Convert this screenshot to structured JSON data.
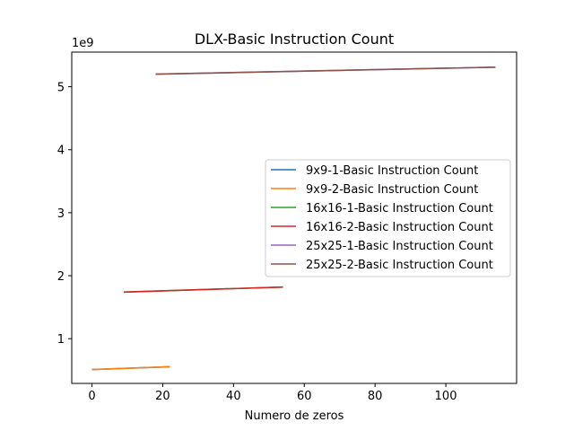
{
  "chart_data": {
    "type": "line",
    "title": "DLX-Basic Instruction Count",
    "xlabel": "Numero de zeros",
    "ylabel": "",
    "y_offset_label": "1e9",
    "xlim": [
      -5.7,
      120
    ],
    "ylim": [
      0.29,
      5.55
    ],
    "xticks": [
      0,
      20,
      40,
      60,
      80,
      100
    ],
    "yticks": [
      1,
      2,
      3,
      4,
      5
    ],
    "grid": false,
    "legend_position": "center-right",
    "series": [
      {
        "name": "9x9-1-Basic Instruction Count",
        "color": "#1f77b4",
        "x": [
          0,
          22
        ],
        "y": [
          0.51,
          0.555
        ]
      },
      {
        "name": "9x9-2-Basic Instruction Count",
        "color": "#ff7f0e",
        "x": [
          0,
          22
        ],
        "y": [
          0.51,
          0.555
        ]
      },
      {
        "name": "16x16-1-Basic Instruction Count",
        "color": "#2ca02c",
        "x": [
          9,
          54
        ],
        "y": [
          1.74,
          1.82
        ]
      },
      {
        "name": "16x16-2-Basic Instruction Count",
        "color": "#d62728",
        "x": [
          9,
          54
        ],
        "y": [
          1.74,
          1.82
        ]
      },
      {
        "name": "25x25-1-Basic Instruction Count",
        "color": "#9467bd",
        "x": [
          18,
          114
        ],
        "y": [
          5.2,
          5.31
        ]
      },
      {
        "name": "25x25-2-Basic Instruction Count",
        "color": "#8c564b",
        "x": [
          18,
          114
        ],
        "y": [
          5.2,
          5.31
        ]
      }
    ]
  }
}
